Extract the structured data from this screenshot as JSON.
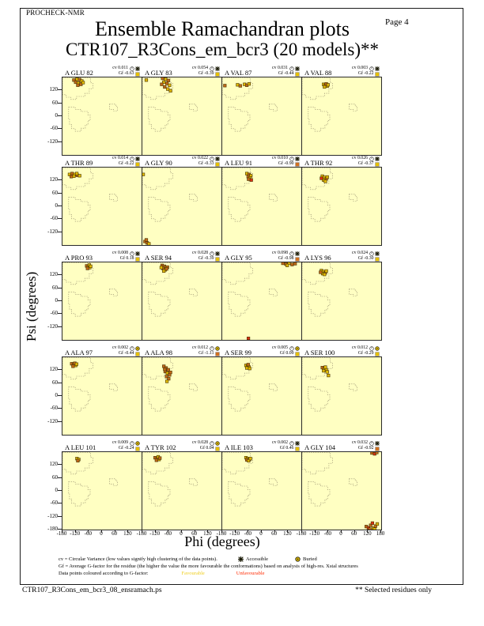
{
  "page": {
    "app_label": "PROCHECK-NMR",
    "page_label": "Page  4",
    "title": "Ensemble Ramachandran plots",
    "subtitle": "CTR107_R3Cons_em_bcr3 (20 models)**",
    "footer_left": "CTR107_R3Cons_em_bcr3_08_ensramach.ps",
    "footer_right": "** Selected residues only"
  },
  "axes": {
    "xlabel": "Phi (degrees)",
    "ylabel": "Psi (degrees)",
    "psi_tick_labels": [
      "120",
      "60",
      "0",
      "-60",
      "-120"
    ],
    "psi_bottom_tick": "-180",
    "phi_tick_labels": [
      "-180",
      "-120",
      "-60",
      "0",
      "60",
      "120"
    ],
    "phi_end_tick": "180"
  },
  "stats_labels": {
    "cv_prefix": "cv",
    "gf_prefix": "Gf"
  },
  "legend": {
    "line1": "cv = Circular Variance (low values signify high clustering of the data points).",
    "accessible_label": "Accessible",
    "buried_label": "Buried",
    "line2": "Gf = Average G-factor for the residue (the higher the value the more favourable the conformations) based on analysis of high-res. Xstal structures",
    "line3_pre": "Data points coloured according to G-factor:",
    "favourable_label": "Favourable",
    "unfavourable_label": "Unfavourable"
  },
  "colors": {
    "plot_bg": "#FFFFC2",
    "point_yellow": "#DFB800",
    "point_orange": "#C06818",
    "point_red": "#DE2F12",
    "favourable_text": "#EFCE1F",
    "unfavourable_text": "#FF2A00",
    "gf_square_favourable": "#E4BE00",
    "gf_square_unfavourable": "#D07020",
    "symbol_dark": "#1C1C08",
    "contour": "#8D8468"
  },
  "chart_data": {
    "type": "scatter",
    "title": "Ensemble Ramachandran plots",
    "subtitle": "CTR107_R3Cons_em_bcr3 (20 models)**",
    "xlabel": "Phi (degrees)",
    "ylabel": "Psi (degrees)",
    "xlim": [
      -180,
      180
    ],
    "ylim": [
      -180,
      180
    ],
    "x_ticks": [
      -180,
      -120,
      -60,
      0,
      60,
      120,
      180
    ],
    "y_ticks": [
      -180,
      -120,
      -60,
      0,
      60,
      120
    ],
    "grid": false,
    "point_color_meaning": {
      "y": "favourable G-factor (yellow)",
      "o": "mid G-factor (orange)",
      "r": "unfavourable G-factor (red)"
    },
    "subplots": [
      {
        "residue": "A GLU 82",
        "cv": "0.011",
        "gf": "-0.63",
        "access": "accessible",
        "gf_level": "favourable",
        "points": [
          [
            -128,
            168,
            "o"
          ],
          [
            -114,
            172,
            "y"
          ],
          [
            -102,
            170,
            "o"
          ],
          [
            -92,
            164,
            "y"
          ],
          [
            -120,
            158,
            "o"
          ],
          [
            -108,
            154,
            "y"
          ],
          [
            -96,
            148,
            "o"
          ],
          [
            -86,
            156,
            "y"
          ],
          [
            -110,
            144,
            "o"
          ]
        ]
      },
      {
        "residue": "A GLY 83",
        "cv": "0.054",
        "gf": "-0.39",
        "access": "accessible",
        "gf_level": "favourable",
        "points": [
          [
            -162,
            168,
            "y"
          ],
          [
            -88,
            176,
            "o"
          ],
          [
            -74,
            172,
            "y"
          ],
          [
            -62,
            166,
            "o"
          ],
          [
            -82,
            158,
            "y"
          ],
          [
            -68,
            152,
            "o"
          ],
          [
            -56,
            144,
            "y"
          ],
          [
            -78,
            136,
            "o"
          ],
          [
            -64,
            126,
            "y"
          ],
          [
            -52,
            118,
            "y"
          ],
          [
            -92,
            148,
            "o"
          ]
        ]
      },
      {
        "residue": "A VAL 87",
        "cv": "0.031",
        "gf": "-0.44",
        "access": "accessible",
        "gf_level": "favourable",
        "points": [
          [
            -168,
            142,
            "o"
          ],
          [
            -110,
            146,
            "y"
          ],
          [
            -98,
            141,
            "o"
          ],
          [
            -78,
            148,
            "y"
          ],
          [
            -68,
            144,
            "o"
          ],
          [
            -58,
            150,
            "y"
          ]
        ]
      },
      {
        "residue": "A VAL 88",
        "cv": "0.003",
        "gf": "-0.22",
        "access": "accessible",
        "gf_level": "favourable",
        "points": [
          [
            -82,
            148,
            "y"
          ],
          [
            -74,
            144,
            "o"
          ],
          [
            -66,
            140,
            "y"
          ],
          [
            -78,
            136,
            "y"
          ],
          [
            -70,
            150,
            "o"
          ],
          [
            -62,
            146,
            "y"
          ]
        ]
      },
      {
        "residue": "A THR 89",
        "cv": "0.014",
        "gf": "-0.22",
        "access": "accessible",
        "gf_level": "favourable",
        "points": [
          [
            -148,
            148,
            "y"
          ],
          [
            -136,
            152,
            "o"
          ],
          [
            -124,
            148,
            "y"
          ],
          [
            -112,
            144,
            "o"
          ],
          [
            -128,
            140,
            "y"
          ],
          [
            -102,
            142,
            "y"
          ],
          [
            -140,
            138,
            "o"
          ],
          [
            -115,
            152,
            "y"
          ]
        ]
      },
      {
        "residue": "A GLY 90",
        "cv": "0.022",
        "gf": "-0.33",
        "access": "accessible",
        "gf_level": "favourable",
        "points": [
          [
            -176,
            148,
            "y"
          ],
          [
            -168,
            -164,
            "o"
          ],
          [
            -158,
            -170,
            "o"
          ],
          [
            -150,
            -174,
            "y"
          ],
          [
            -162,
            -156,
            "o"
          ]
        ]
      },
      {
        "residue": "A LEU 91",
        "cv": "0.010",
        "gf": "-0.90",
        "access": "accessible",
        "gf_level": "unfavourable",
        "points": [
          [
            -68,
            152,
            "y"
          ],
          [
            -58,
            148,
            "o"
          ],
          [
            -50,
            142,
            "y"
          ],
          [
            -62,
            138,
            "o"
          ],
          [
            -54,
            132,
            "y"
          ],
          [
            -48,
            122,
            "r"
          ],
          [
            -60,
            126,
            "o"
          ]
        ]
      },
      {
        "residue": "A THR 92",
        "cv": "0.026",
        "gf": "-0.37",
        "access": "accessible",
        "gf_level": "favourable",
        "points": [
          [
            -88,
            140,
            "y"
          ],
          [
            -78,
            134,
            "y"
          ],
          [
            -70,
            128,
            "o"
          ],
          [
            -82,
            122,
            "y"
          ],
          [
            -74,
            116,
            "y"
          ],
          [
            -92,
            130,
            "r"
          ],
          [
            -66,
            136,
            "y"
          ]
        ]
      },
      {
        "residue": "A PRO 93",
        "cv": "0.008",
        "gf": "0.18",
        "access": "accessible",
        "gf_level": "favourable",
        "points": [
          [
            -70,
            164,
            "o"
          ],
          [
            -62,
            160,
            "y"
          ],
          [
            -56,
            156,
            "y"
          ],
          [
            -66,
            152,
            "o"
          ],
          [
            -58,
            168,
            "y"
          ],
          [
            -52,
            162,
            "y"
          ]
        ]
      },
      {
        "residue": "A SER 94",
        "cv": "0.028",
        "gf": "-0.39",
        "access": "accessible",
        "gf_level": "favourable",
        "points": [
          [
            -90,
            166,
            "o"
          ],
          [
            -80,
            162,
            "o"
          ],
          [
            -72,
            156,
            "y"
          ],
          [
            -86,
            152,
            "o"
          ],
          [
            -76,
            146,
            "y"
          ],
          [
            -66,
            158,
            "o"
          ],
          [
            -82,
            140,
            "y"
          ],
          [
            -94,
            156,
            "y"
          ],
          [
            -70,
            150,
            "o"
          ]
        ]
      },
      {
        "residue": "A GLY 95",
        "cv": "0.098",
        "gf": "-0.98",
        "access": "accessible",
        "gf_level": "unfavourable",
        "points": [
          [
            96,
            176,
            "o"
          ],
          [
            110,
            172,
            "o"
          ],
          [
            124,
            176,
            "y"
          ],
          [
            138,
            170,
            "o"
          ],
          [
            152,
            174,
            "o"
          ],
          [
            116,
            166,
            "y"
          ],
          [
            -61,
            -173,
            "r"
          ]
        ]
      },
      {
        "residue": "A LYS 96",
        "cv": "0.024",
        "gf": "-0.30",
        "access": "accessible",
        "gf_level": "favourable",
        "points": [
          [
            -92,
            142,
            "y"
          ],
          [
            -82,
            137,
            "y"
          ],
          [
            -74,
            132,
            "o"
          ],
          [
            -86,
            128,
            "y"
          ],
          [
            -78,
            124,
            "y"
          ],
          [
            -96,
            134,
            "o"
          ],
          [
            -70,
            140,
            "y"
          ]
        ]
      },
      {
        "residue": "A ALA 97",
        "cv": "0.002",
        "gf": "-0.44",
        "access": "buried",
        "gf_level": "favourable",
        "points": [
          [
            -138,
            150,
            "o"
          ],
          [
            -128,
            146,
            "o"
          ],
          [
            -120,
            142,
            "y"
          ],
          [
            -132,
            138,
            "o"
          ],
          [
            -124,
            152,
            "o"
          ],
          [
            -116,
            148,
            "y"
          ]
        ]
      },
      {
        "residue": "A ALA 98",
        "cv": "0.012",
        "gf": "-1.11",
        "access": "buried",
        "gf_level": "unfavourable",
        "points": [
          [
            -82,
            138,
            "o"
          ],
          [
            -72,
            130,
            "o"
          ],
          [
            -62,
            122,
            "o"
          ],
          [
            -76,
            114,
            "o"
          ],
          [
            -66,
            106,
            "y"
          ],
          [
            -56,
            98,
            "o"
          ],
          [
            -70,
            90,
            "o"
          ],
          [
            -60,
            80,
            "o"
          ],
          [
            -78,
            124,
            "o"
          ],
          [
            -52,
            110,
            "o"
          ],
          [
            -68,
            68,
            "y"
          ]
        ]
      },
      {
        "residue": "A SER 99",
        "cv": "0.005",
        "gf": "0.09",
        "access": "buried",
        "gf_level": "favourable",
        "points": [
          [
            -72,
            142,
            "y"
          ],
          [
            -64,
            138,
            "y"
          ],
          [
            -58,
            134,
            "y"
          ],
          [
            -68,
            130,
            "y"
          ],
          [
            -62,
            146,
            "o"
          ],
          [
            -55,
            128,
            "y"
          ]
        ]
      },
      {
        "residue": "A SER 100",
        "cv": "0.012",
        "gf": "-0.29",
        "access": "buried",
        "gf_level": "favourable",
        "points": [
          [
            -88,
            132,
            "o"
          ],
          [
            -78,
            127,
            "y"
          ],
          [
            -70,
            122,
            "y"
          ],
          [
            -82,
            117,
            "y"
          ],
          [
            -74,
            134,
            "y"
          ],
          [
            -66,
            112,
            "y"
          ],
          [
            -60,
            95,
            "y"
          ]
        ]
      },
      {
        "residue": "A LEU 101",
        "cv": "0.009",
        "gf": "-0.24",
        "access": "buried",
        "gf_level": "favourable",
        "points": [
          [
            -114,
            150,
            "y"
          ],
          [
            -106,
            146,
            "y"
          ],
          [
            -110,
            140,
            "o"
          ]
        ]
      },
      {
        "residue": "A TYR 102",
        "cv": "0.028",
        "gf": "0.04",
        "access": "buried",
        "gf_level": "favourable",
        "points": [
          [
            -122,
            154,
            "o"
          ],
          [
            -112,
            150,
            "o"
          ],
          [
            -104,
            146,
            "y"
          ],
          [
            -116,
            142,
            "o"
          ],
          [
            -108,
            158,
            "y"
          ],
          [
            -100,
            152,
            "o"
          ]
        ]
      },
      {
        "residue": "A ILE 103",
        "cv": "0.002",
        "gf": "0.46",
        "access": "accessible",
        "gf_level": "favourable",
        "points": [
          [
            -72,
            154,
            "y"
          ],
          [
            -64,
            150,
            "y"
          ],
          [
            -56,
            146,
            "y"
          ],
          [
            -68,
            144,
            "o"
          ],
          [
            -60,
            140,
            "y"
          ],
          [
            -52,
            150,
            "y"
          ]
        ]
      },
      {
        "residue": "A GLY 104",
        "cv": "0.032",
        "gf": "-0.92",
        "access": "accessible",
        "gf_level": "unfavourable",
        "points": [
          [
            138,
            176,
            "o"
          ],
          [
            150,
            172,
            "r"
          ],
          [
            160,
            178,
            "o"
          ],
          [
            112,
            -166,
            "o"
          ],
          [
            122,
            -172,
            "r"
          ],
          [
            132,
            -160,
            "o"
          ],
          [
            144,
            -174,
            "y"
          ],
          [
            154,
            -164,
            "o"
          ],
          [
            162,
            -154,
            "y"
          ],
          [
            140,
            -150,
            "r"
          ],
          [
            128,
            -178,
            "o"
          ],
          [
            150,
            -178,
            "y"
          ]
        ]
      }
    ]
  }
}
